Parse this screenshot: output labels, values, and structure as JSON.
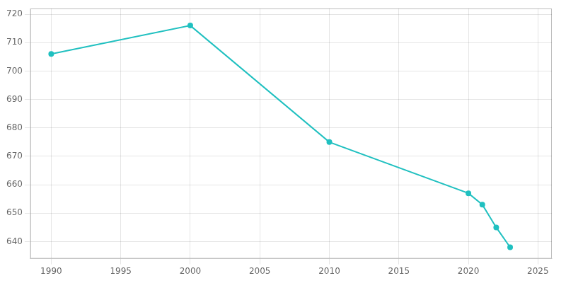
{
  "chart_data": {
    "type": "line",
    "x": [
      1990,
      2000,
      2010,
      2020,
      2021,
      2022,
      2023
    ],
    "values": [
      706,
      716,
      675,
      657,
      653,
      645,
      638
    ],
    "color": "#20c0c0",
    "marker": "circle",
    "xlim": [
      1988.5,
      2026
    ],
    "ylim": [
      634,
      722
    ],
    "xticks": [
      1990,
      1995,
      2000,
      2005,
      2010,
      2015,
      2020,
      2025
    ],
    "yticks": [
      640,
      650,
      660,
      670,
      680,
      690,
      700,
      710,
      720
    ],
    "grid": true
  }
}
